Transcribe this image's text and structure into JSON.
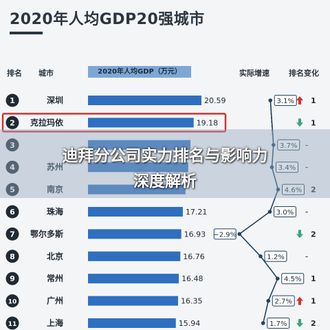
{
  "page": {
    "title": "2020年人均GDP20强城市",
    "overlay_line1": "迪拜分公司实力排名与影响力",
    "overlay_line2": "深度解析"
  },
  "headers": {
    "rank": "排名",
    "city": "城市",
    "gdp": "2020年人均GDP（万元）",
    "growth": "实际增速",
    "change": "排名变化"
  },
  "colors": {
    "bar": "#2f6fc0",
    "highlight": "#d8322e",
    "up": "#d8322e",
    "down": "#3aa57a",
    "badge": "#1f2a33"
  },
  "chart_data": {
    "type": "bar",
    "title": "2020年人均GDP20强城市",
    "rows": [
      {
        "rank": "1",
        "city": "深圳",
        "gdp": 20.59,
        "gdp_label": "20.59",
        "growth": 3.1,
        "growth_label": "3.1%",
        "change_dir": "up",
        "change": "1"
      },
      {
        "rank": "2",
        "city": "克拉玛依",
        "gdp": 19.18,
        "gdp_label": "19.18",
        "growth": null,
        "growth_label": "",
        "change_dir": "down",
        "change": "1",
        "highlight": true
      },
      {
        "rank": "3",
        "city": "",
        "gdp": 18.6,
        "gdp_label": "",
        "growth": 3.7,
        "growth_label": "3.7%",
        "change_dir": "none",
        "change": "-"
      },
      {
        "rank": "4",
        "city": "苏州",
        "gdp": 18.2,
        "gdp_label": "",
        "growth": 3.4,
        "growth_label": "3.4%",
        "change_dir": "none",
        "change": "-"
      },
      {
        "rank": "5",
        "city": "南京",
        "gdp": 17.7,
        "gdp_label": "",
        "growth": 4.6,
        "growth_label": "4.6%",
        "change_dir": "up",
        "change": "2"
      },
      {
        "rank": "6",
        "city": "珠海",
        "gdp": 17.21,
        "gdp_label": "17.21",
        "growth": 3.0,
        "growth_label": "3.0%",
        "change_dir": "none",
        "change": "-"
      },
      {
        "rank": "7",
        "city": "鄂尔多斯",
        "gdp": 16.93,
        "gdp_label": "16.93",
        "growth": -2.9,
        "growth_label": "−2.9%",
        "change_dir": "down",
        "change": "2"
      },
      {
        "rank": "8",
        "city": "北京",
        "gdp": 16.76,
        "gdp_label": "16.76",
        "growth": 1.2,
        "growth_label": "1.2%",
        "change_dir": "none",
        "change": "-"
      },
      {
        "rank": "9",
        "city": "常州",
        "gdp": 16.48,
        "gdp_label": "16.48",
        "growth": 4.5,
        "growth_label": "4.5%",
        "change_dir": "up",
        "change": "1"
      },
      {
        "rank": "10",
        "city": "广州",
        "gdp": 16.35,
        "gdp_label": "16.35",
        "growth": 2.7,
        "growth_label": "2.7%",
        "change_dir": "up",
        "change": "1"
      },
      {
        "rank": "11",
        "city": "上海",
        "gdp": 15.94,
        "gdp_label": "15.94",
        "growth": 1.7,
        "growth_label": "1.7%",
        "change_dir": "down",
        "change": "2"
      }
    ]
  }
}
